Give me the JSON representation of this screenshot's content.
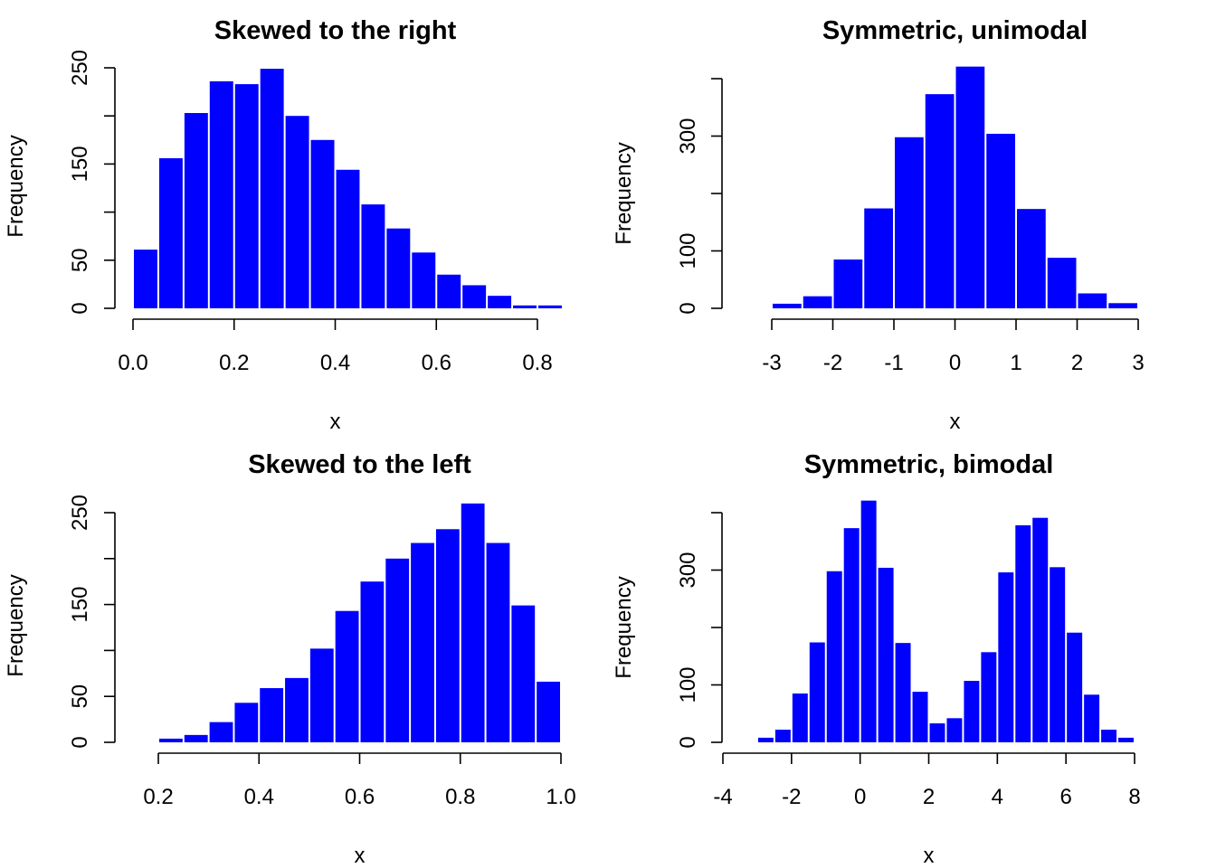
{
  "chart_data": [
    {
      "type": "bar",
      "title": "Skewed to the right",
      "xlabel": "x",
      "ylabel": "Frequency",
      "bin_width": 0.05,
      "bin_start": 0.0,
      "values": [
        61,
        156,
        203,
        236,
        233,
        249,
        200,
        175,
        144,
        108,
        83,
        58,
        35,
        24,
        13,
        3,
        3
      ],
      "xlim": [
        0.0,
        0.85
      ],
      "xticks": [
        0.0,
        0.2,
        0.4,
        0.6,
        0.8
      ],
      "xtick_labels": [
        "0.0",
        "0.2",
        "0.4",
        "0.6",
        "0.8"
      ],
      "ylim": [
        0,
        250
      ],
      "yticks": [
        0,
        50,
        100,
        150,
        200,
        250
      ],
      "ytick_labels": [
        "0",
        "50",
        "",
        "150",
        "",
        "250"
      ],
      "bar_color": "#0000ff"
    },
    {
      "type": "bar",
      "title": "Symmetric, unimodal",
      "xlabel": "x",
      "ylabel": "Frequency",
      "bin_width": 0.5,
      "bin_start": -3.0,
      "values": [
        8,
        21,
        85,
        174,
        298,
        373,
        421,
        304,
        173,
        88,
        26,
        9
      ],
      "xlim": [
        -3,
        3
      ],
      "xticks": [
        -3,
        -2,
        -1,
        0,
        1,
        2,
        3
      ],
      "xtick_labels": [
        "-3",
        "-2",
        "-1",
        "0",
        "1",
        "2",
        "3"
      ],
      "ylim": [
        0,
        400
      ],
      "yticks": [
        0,
        100,
        200,
        300,
        400
      ],
      "ytick_labels": [
        "0",
        "100",
        "",
        "300",
        ""
      ],
      "bar_color": "#0000ff"
    },
    {
      "type": "bar",
      "title": "Skewed to the left",
      "xlabel": "x",
      "ylabel": "Frequency",
      "bin_width": 0.05,
      "bin_start": 0.2,
      "values": [
        4,
        8,
        22,
        43,
        59,
        70,
        102,
        143,
        175,
        200,
        217,
        232,
        260,
        217,
        149,
        66
      ],
      "xlim": [
        0.2,
        1.0
      ],
      "xticks": [
        0.2,
        0.4,
        0.6,
        0.8,
        1.0
      ],
      "xtick_labels": [
        "0.2",
        "0.4",
        "0.6",
        "0.8",
        "1.0"
      ],
      "ylim": [
        0,
        250
      ],
      "yticks": [
        0,
        50,
        100,
        150,
        200,
        250
      ],
      "ytick_labels": [
        "0",
        "50",
        "",
        "150",
        "",
        "250"
      ],
      "bar_color": "#0000ff"
    },
    {
      "type": "bar",
      "title": "Symmetric, bimodal",
      "xlabel": "x",
      "ylabel": "Frequency",
      "bin_width": 0.5,
      "bin_start": -3.0,
      "values": [
        8,
        22,
        85,
        174,
        298,
        373,
        421,
        304,
        173,
        88,
        33,
        42,
        107,
        157,
        296,
        378,
        391,
        305,
        191,
        83,
        22,
        8
      ],
      "xlim": [
        -4,
        8
      ],
      "xticks": [
        -4,
        -2,
        0,
        2,
        4,
        6,
        8
      ],
      "xtick_labels": [
        "-4",
        "-2",
        "0",
        "2",
        "4",
        "6",
        "8"
      ],
      "ylim": [
        0,
        400
      ],
      "yticks": [
        0,
        100,
        200,
        300,
        400
      ],
      "ytick_labels": [
        "0",
        "100",
        "",
        "300",
        ""
      ],
      "bar_color": "#0000ff"
    }
  ]
}
